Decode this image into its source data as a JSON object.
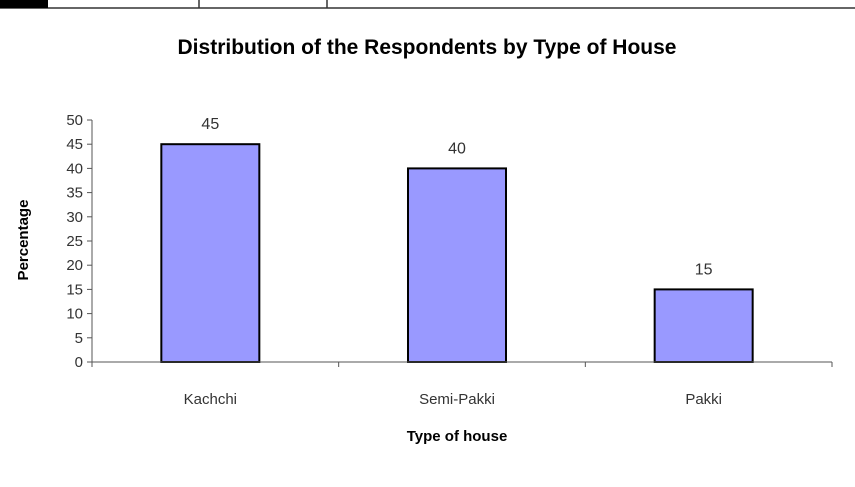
{
  "chart_data": {
    "type": "bar",
    "title": "Distribution of the Respondents by Type of House",
    "xlabel": "Type of house",
    "ylabel": "Percentage",
    "categories": [
      "Kachchi",
      "Semi-Pakki",
      "Pakki"
    ],
    "values": [
      45,
      40,
      15
    ],
    "data_labels": [
      "45",
      "40",
      "15"
    ],
    "ylim": [
      0,
      50
    ],
    "yticks": [
      0,
      5,
      10,
      15,
      20,
      25,
      30,
      35,
      40,
      45,
      50
    ],
    "grid": false,
    "legend": "none",
    "colors": {
      "bar_fill": "#9999ff",
      "bar_stroke": "#000000",
      "axis": "#555555"
    }
  }
}
